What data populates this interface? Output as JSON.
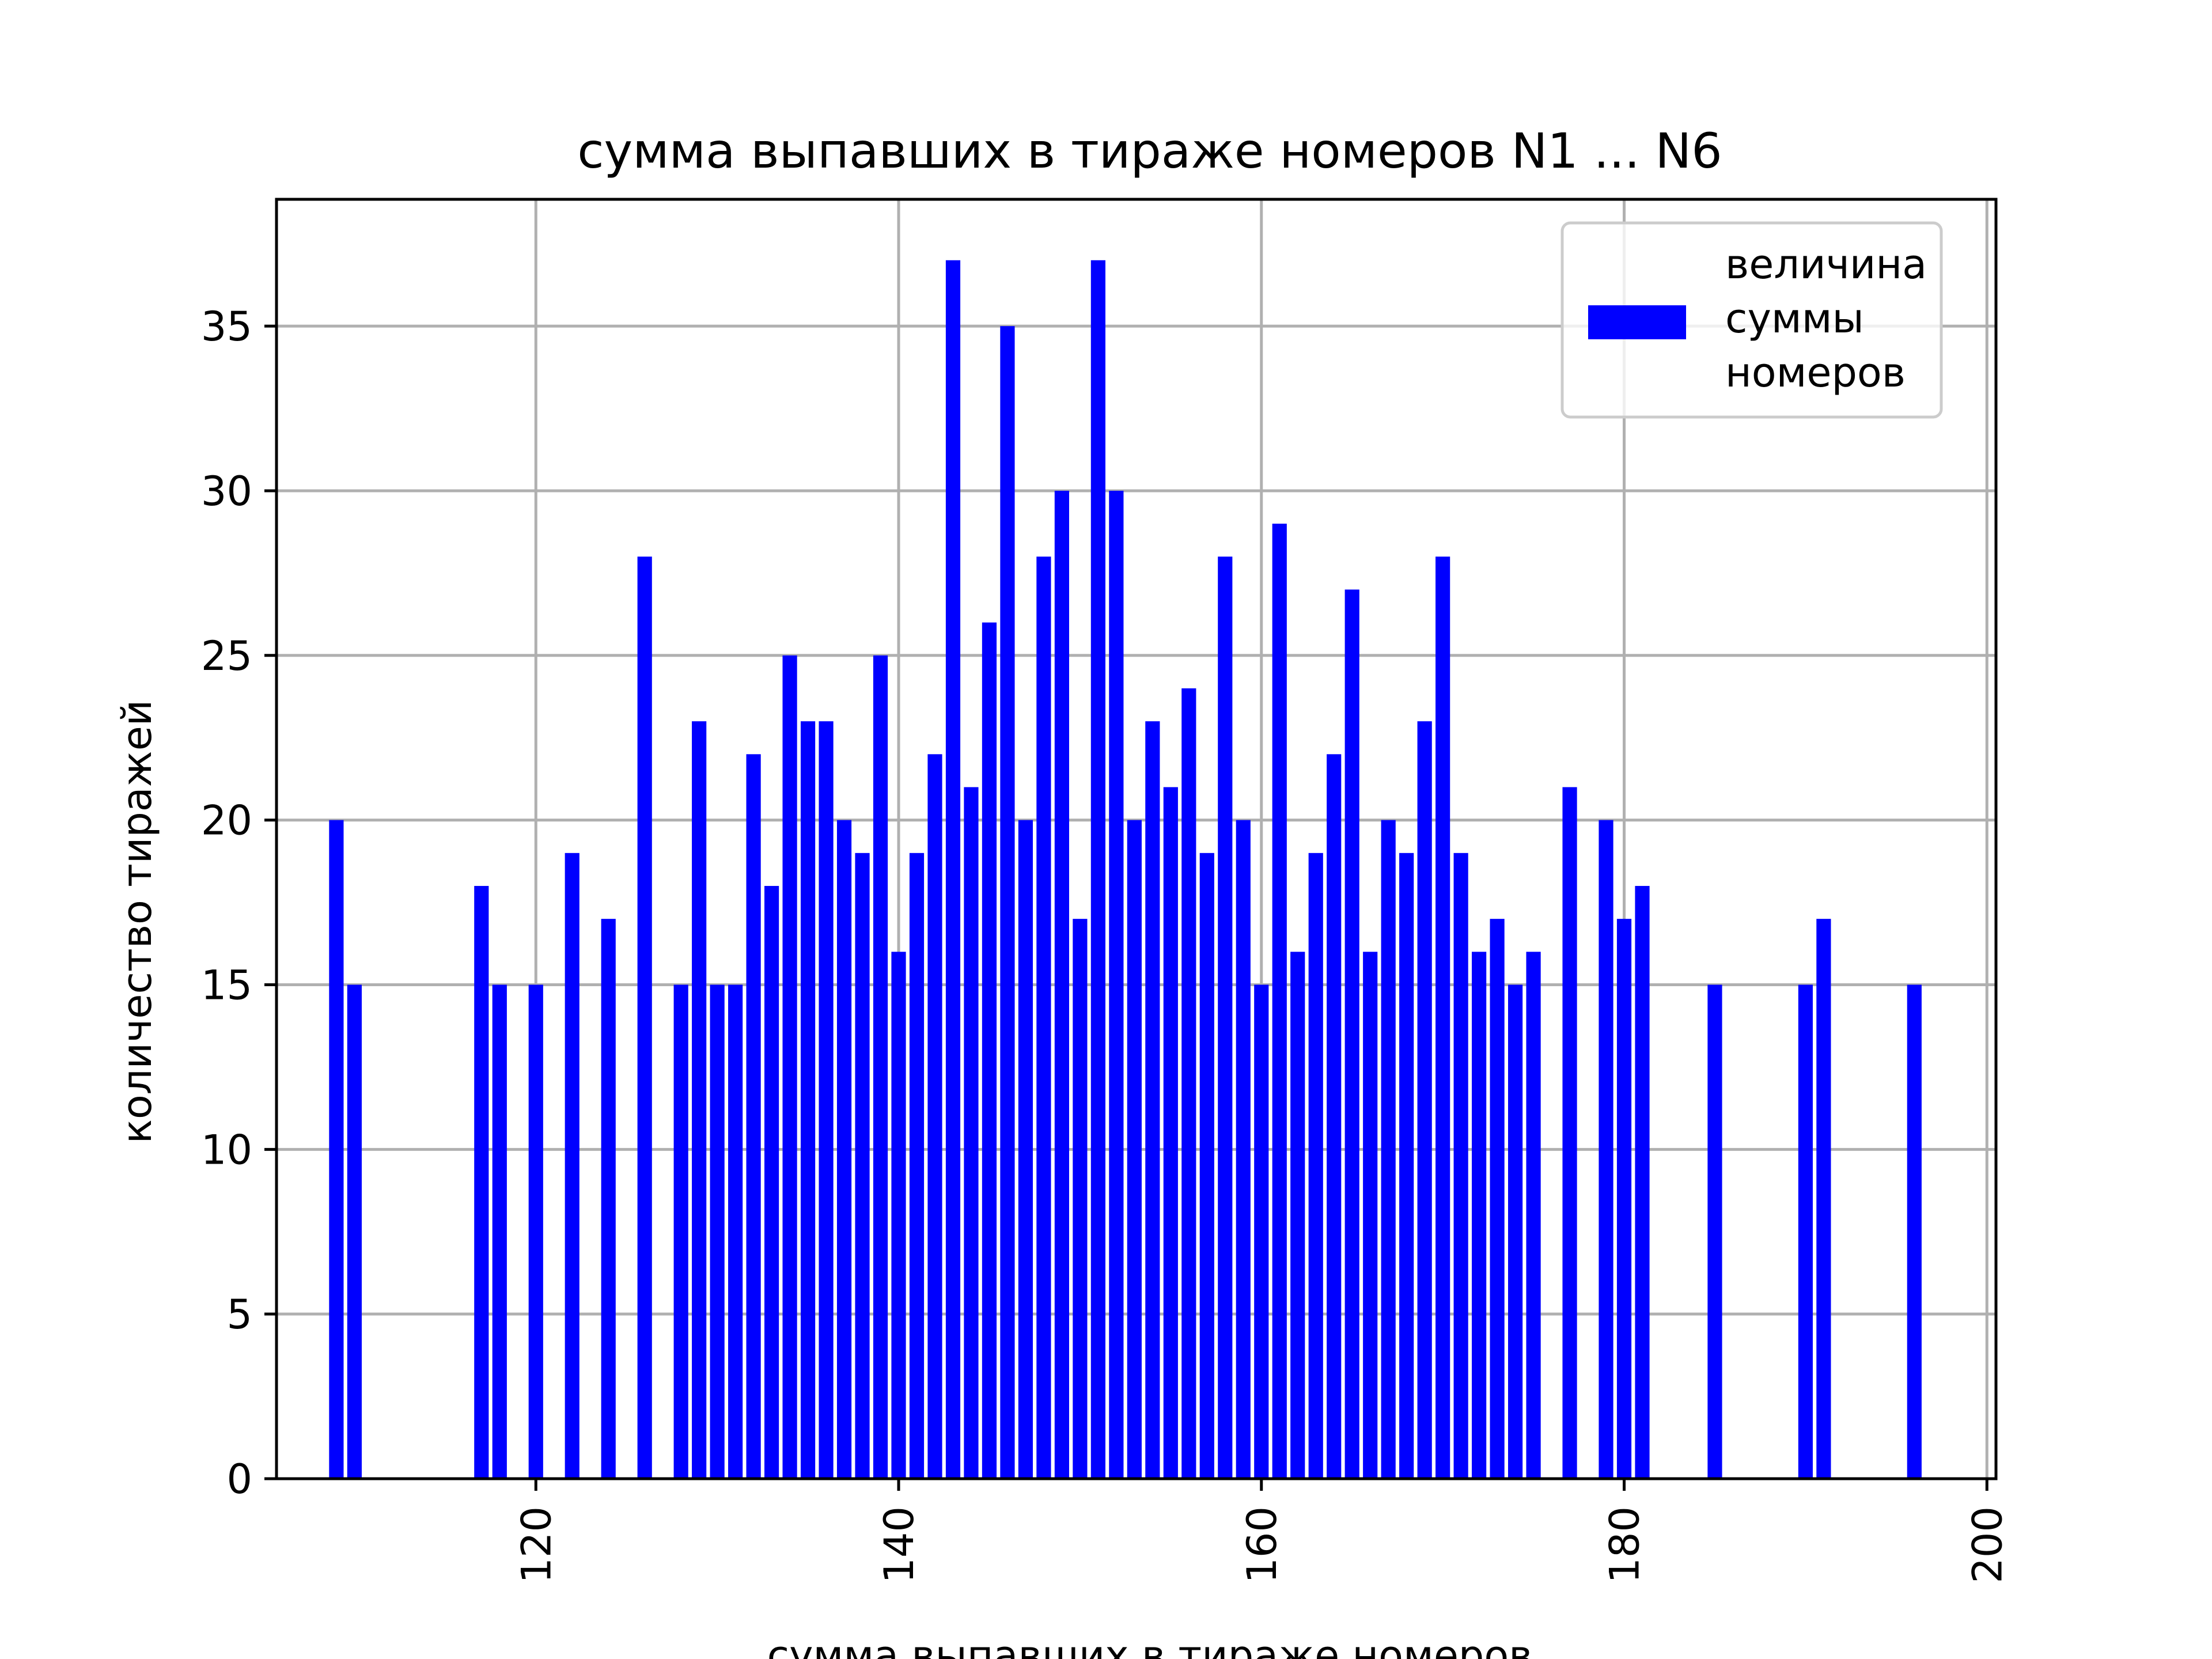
{
  "chart_data": {
    "type": "bar",
    "title": "сумма выпавших в тираже номеров N1 ... N6",
    "xlabel": "сумма выпавших в тираже номеров",
    "ylabel": "количество тиражей",
    "xlim": [
      105.7,
      200.5
    ],
    "ylim": [
      0,
      38.85
    ],
    "grid": true,
    "legend_position": "top-right",
    "bar_color": "#0000ff",
    "x_ticks": [
      {
        "value": 120,
        "label": "120"
      },
      {
        "value": 140,
        "label": "140"
      },
      {
        "value": 160,
        "label": "160"
      },
      {
        "value": 180,
        "label": "180"
      },
      {
        "value": 200,
        "label": "200"
      }
    ],
    "y_ticks": [
      {
        "value": 0,
        "label": "0"
      },
      {
        "value": 5,
        "label": "5"
      },
      {
        "value": 10,
        "label": "10"
      },
      {
        "value": 15,
        "label": "15"
      },
      {
        "value": 20,
        "label": "20"
      },
      {
        "value": 25,
        "label": "25"
      },
      {
        "value": 30,
        "label": "30"
      },
      {
        "value": 35,
        "label": "35"
      }
    ],
    "series": [
      {
        "name": "величина суммы номеров",
        "legend_lines": [
          "величина",
          "суммы",
          "номеров"
        ],
        "x": [
          109,
          110,
          117,
          118,
          120,
          122,
          124,
          126,
          128,
          129,
          130,
          131,
          132,
          133,
          134,
          135,
          136,
          137,
          138,
          139,
          140,
          141,
          142,
          143,
          144,
          145,
          146,
          147,
          148,
          149,
          150,
          151,
          152,
          153,
          154,
          155,
          156,
          157,
          158,
          159,
          160,
          161,
          162,
          163,
          164,
          165,
          166,
          167,
          168,
          169,
          170,
          171,
          172,
          173,
          174,
          175,
          177,
          179,
          180,
          181,
          185,
          190,
          191,
          196
        ],
        "values": [
          20,
          15,
          18,
          15,
          15,
          19,
          17,
          28,
          15,
          23,
          15,
          15,
          22,
          18,
          25,
          23,
          23,
          20,
          19,
          25,
          16,
          19,
          22,
          37,
          21,
          26,
          35,
          20,
          28,
          30,
          17,
          37,
          30,
          20,
          23,
          21,
          24,
          19,
          28,
          20,
          15,
          29,
          16,
          19,
          22,
          27,
          16,
          20,
          19,
          23,
          28,
          19,
          16,
          17,
          15,
          16,
          21,
          20,
          17,
          18,
          15,
          15,
          17,
          15
        ]
      }
    ]
  }
}
